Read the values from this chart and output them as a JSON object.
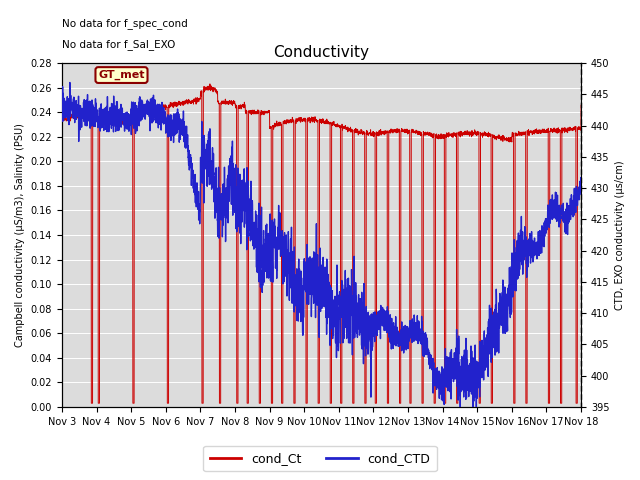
{
  "title": "Conductivity",
  "ylabel_left": "Campbell conductivity (µS/m3), Salinity (PSU)",
  "ylabel_right": "CTD, EXO conductivity (µs/cm)",
  "ylim_left": [
    0.0,
    0.28
  ],
  "ylim_right": [
    395,
    450
  ],
  "yticks_left": [
    0.0,
    0.02,
    0.04,
    0.06,
    0.08,
    0.1,
    0.12,
    0.14,
    0.16,
    0.18,
    0.2,
    0.22,
    0.24,
    0.26,
    0.28
  ],
  "yticks_right": [
    395,
    400,
    405,
    410,
    415,
    420,
    425,
    430,
    435,
    440,
    445,
    450
  ],
  "xtick_labels": [
    "Nov 3",
    "Nov 4",
    "Nov 5",
    "Nov 6",
    "Nov 7",
    "Nov 8",
    "Nov 9",
    "Nov 10",
    "Nov 11",
    "Nov 12",
    "Nov 13",
    "Nov 14",
    "Nov 15",
    "Nov 16",
    "Nov 17",
    "Nov 18"
  ],
  "text_top1": "No data for f_spec_cond",
  "text_top2": "No data for f_Sal_EXO",
  "gt_met_label": "GT_met",
  "legend_labels": [
    "cond_Ct",
    "cond_CTD"
  ],
  "color_red": "#cc0000",
  "color_blue": "#2222cc",
  "background_color": "#dcdcdc"
}
